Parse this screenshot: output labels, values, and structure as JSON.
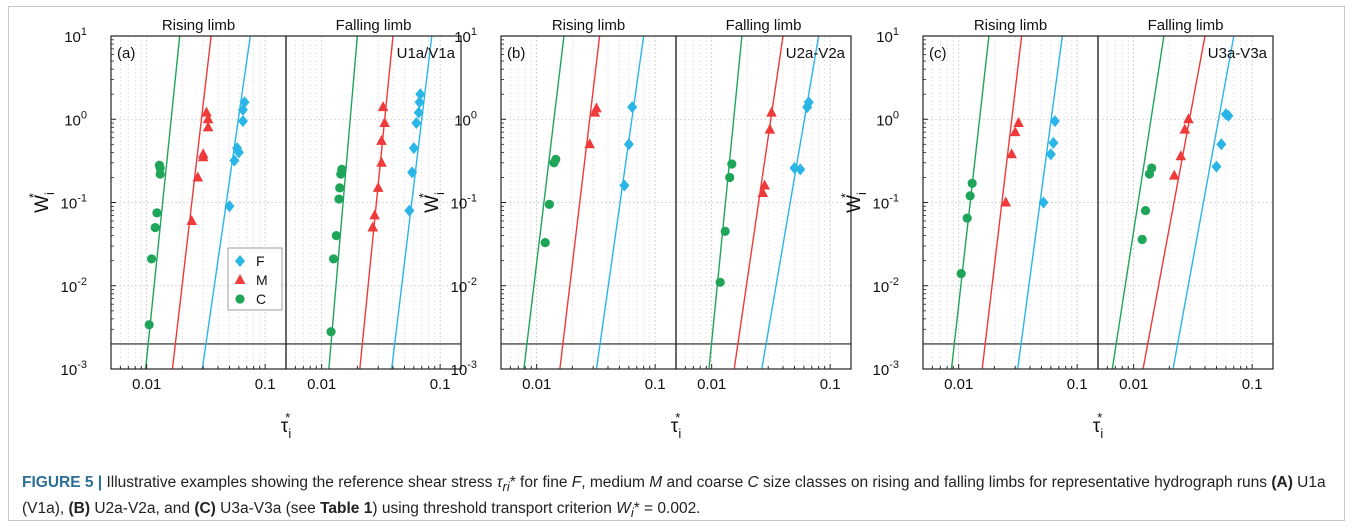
{
  "chart_data": {
    "type": "scatter",
    "yscale": "log",
    "xscale": "log",
    "xlim": [
      0.005,
      0.15
    ],
    "ylim": [
      0.001,
      10
    ],
    "xticks": [
      "0.01",
      "0.1"
    ],
    "yticks": [
      "10^1",
      "10^0",
      "10^-1",
      "10^-2",
      "10^-3"
    ],
    "xlabel_base": "τ",
    "xlabel_sub": "i",
    "xlabel_sup": "*",
    "ylabel_base": "W",
    "ylabel_sub": "i",
    "ylabel_sup": "*",
    "threshold": 0.002,
    "grid": true,
    "legend_placement": "lower-right of left subplot in panel (a)",
    "legend": [
      {
        "label": "F",
        "marker": "diamond",
        "color": "#29b6e6"
      },
      {
        "label": "M",
        "marker": "triangle",
        "color": "#ee3a3a"
      },
      {
        "label": "C",
        "marker": "circle",
        "color": "#1fa55a"
      }
    ],
    "subplot_titles": [
      "Rising limb",
      "Falling limb"
    ],
    "panels": [
      {
        "label": "(a)",
        "run": "U1a/V1a",
        "subplots": [
          {
            "name": "Rising limb",
            "lines": {
              "F": [
                0.0295,
                0.075
              ],
              "M": [
                0.0165,
                0.035
              ],
              "C": [
                0.0098,
                0.019
              ]
            },
            "series": {
              "F": [
                [
                  0.05,
                  0.09
                ],
                [
                  0.055,
                  0.32
                ],
                [
                  0.058,
                  0.45
                ],
                [
                  0.06,
                  0.4
                ],
                [
                  0.065,
                  0.95
                ],
                [
                  0.065,
                  1.3
                ],
                [
                  0.067,
                  1.6
                ]
              ],
              "M": [
                [
                  0.024,
                  0.06
                ],
                [
                  0.027,
                  0.2
                ],
                [
                  0.03,
                  0.35
                ],
                [
                  0.03,
                  0.38
                ],
                [
                  0.033,
                  0.8
                ],
                [
                  0.033,
                  1.0
                ],
                [
                  0.032,
                  1.2
                ]
              ],
              "C": [
                [
                  0.0105,
                  0.0034
                ],
                [
                  0.011,
                  0.021
                ],
                [
                  0.0118,
                  0.05
                ],
                [
                  0.0122,
                  0.075
                ],
                [
                  0.013,
                  0.22
                ],
                [
                  0.013,
                  0.26
                ],
                [
                  0.0128,
                  0.28
                ]
              ]
            }
          },
          {
            "name": "Falling limb",
            "lines": {
              "F": [
                0.039,
                0.085
              ],
              "M": [
                0.021,
                0.04
              ],
              "C": [
                0.0115,
                0.02
              ]
            },
            "series": {
              "F": [
                [
                  0.055,
                  0.08
                ],
                [
                  0.058,
                  0.23
                ],
                [
                  0.06,
                  0.45
                ],
                [
                  0.063,
                  0.9
                ],
                [
                  0.066,
                  1.2
                ],
                [
                  0.067,
                  1.6
                ],
                [
                  0.068,
                  2.0
                ]
              ],
              "M": [
                [
                  0.027,
                  0.05
                ],
                [
                  0.028,
                  0.07
                ],
                [
                  0.03,
                  0.15
                ],
                [
                  0.032,
                  0.3
                ],
                [
                  0.032,
                  0.55
                ],
                [
                  0.034,
                  0.9
                ],
                [
                  0.033,
                  1.4
                ]
              ],
              "C": [
                [
                  0.012,
                  0.0028
                ],
                [
                  0.0126,
                  0.021
                ],
                [
                  0.0133,
                  0.04
                ],
                [
                  0.014,
                  0.11
                ],
                [
                  0.0142,
                  0.15
                ],
                [
                  0.0145,
                  0.22
                ],
                [
                  0.0148,
                  0.25
                ]
              ]
            }
          }
        ]
      },
      {
        "label": "(b)",
        "run": "U2a-V2a",
        "subplots": [
          {
            "name": "Rising limb",
            "lines": {
              "F": [
                0.032,
                0.08
              ],
              "M": [
                0.0157,
                0.034
              ],
              "C": [
                0.0078,
                0.017
              ]
            },
            "series": {
              "F": [
                [
                  0.055,
                  0.16
                ],
                [
                  0.06,
                  0.5
                ],
                [
                  0.064,
                  1.4
                ]
              ],
              "M": [
                [
                  0.028,
                  0.5
                ],
                [
                  0.031,
                  1.2
                ],
                [
                  0.032,
                  1.35
                ]
              ],
              "C": [
                [
                  0.0118,
                  0.033
                ],
                [
                  0.0128,
                  0.095
                ],
                [
                  0.014,
                  0.3
                ],
                [
                  0.0145,
                  0.33
                ]
              ]
            }
          },
          {
            "name": "Falling limb",
            "lines": {
              "F": [
                0.0265,
                0.08
              ],
              "M": [
                0.0155,
                0.04
              ],
              "C": [
                0.0095,
                0.018
              ]
            },
            "series": {
              "F": [
                [
                  0.05,
                  0.26
                ],
                [
                  0.056,
                  0.25
                ],
                [
                  0.064,
                  1.4
                ],
                [
                  0.066,
                  1.6
                ]
              ],
              "M": [
                [
                  0.027,
                  0.13
                ],
                [
                  0.028,
                  0.16
                ],
                [
                  0.031,
                  0.75
                ],
                [
                  0.032,
                  1.2
                ]
              ],
              "C": [
                [
                  0.0118,
                  0.011
                ],
                [
                  0.013,
                  0.045
                ],
                [
                  0.0142,
                  0.2
                ],
                [
                  0.0148,
                  0.29
                ]
              ]
            }
          }
        ]
      },
      {
        "label": "(c)",
        "run": "U3a-V3a",
        "subplots": [
          {
            "name": "Rising limb",
            "lines": {
              "F": [
                0.0315,
                0.075
              ],
              "M": [
                0.0158,
                0.034
              ],
              "C": [
                0.0087,
                0.018
              ]
            },
            "series": {
              "F": [
                [
                  0.052,
                  0.1
                ],
                [
                  0.06,
                  0.38
                ],
                [
                  0.063,
                  0.52
                ],
                [
                  0.065,
                  0.95
                ]
              ],
              "M": [
                [
                  0.025,
                  0.1
                ],
                [
                  0.028,
                  0.38
                ],
                [
                  0.03,
                  0.7
                ],
                [
                  0.032,
                  0.9
                ]
              ],
              "C": [
                [
                  0.0105,
                  0.014
                ],
                [
                  0.0118,
                  0.065
                ],
                [
                  0.0125,
                  0.12
                ],
                [
                  0.013,
                  0.17
                ]
              ]
            }
          },
          {
            "name": "Falling limb",
            "lines": {
              "F": [
                0.0215,
                0.07
              ],
              "M": [
                0.012,
                0.04
              ],
              "C": [
                0.0066,
                0.018
              ]
            },
            "series": {
              "F": [
                [
                  0.05,
                  0.27
                ],
                [
                  0.055,
                  0.5
                ],
                [
                  0.06,
                  1.15
                ],
                [
                  0.063,
                  1.1
                ]
              ],
              "M": [
                [
                  0.022,
                  0.21
                ],
                [
                  0.025,
                  0.36
                ],
                [
                  0.027,
                  0.75
                ],
                [
                  0.029,
                  1.0
                ]
              ],
              "C": [
                [
                  0.0118,
                  0.036
                ],
                [
                  0.0126,
                  0.08
                ],
                [
                  0.0136,
                  0.22
                ],
                [
                  0.0142,
                  0.26
                ]
              ]
            }
          }
        ]
      }
    ]
  },
  "caption": {
    "figure_label": "FIGURE 5 |",
    "text_1": " Illustrative examples showing the reference shear stress ",
    "tau_symbol": "τ",
    "tau_sub": "ri",
    "tau_sup": "*",
    "text_2": " for fine ",
    "fine": "F",
    "text_3": ", medium ",
    "medium": "M",
    "text_4": " and coarse ",
    "coarse": "C",
    "text_5": " size classes on rising and falling limbs for representative hydrograph runs ",
    "label_a": "(A)",
    "run_a": " U1a (V1a), ",
    "label_b": "(B)",
    "run_b": " U2a-V2a, and ",
    "label_c": "(C)",
    "run_c": " U3a-V3a (see ",
    "table_ref": "Table 1",
    "text_6": ") using threshold transport criterion ",
    "w_symbol": "W",
    "w_sub": "i",
    "w_sup": "*",
    "text_7": " = 0.002."
  }
}
